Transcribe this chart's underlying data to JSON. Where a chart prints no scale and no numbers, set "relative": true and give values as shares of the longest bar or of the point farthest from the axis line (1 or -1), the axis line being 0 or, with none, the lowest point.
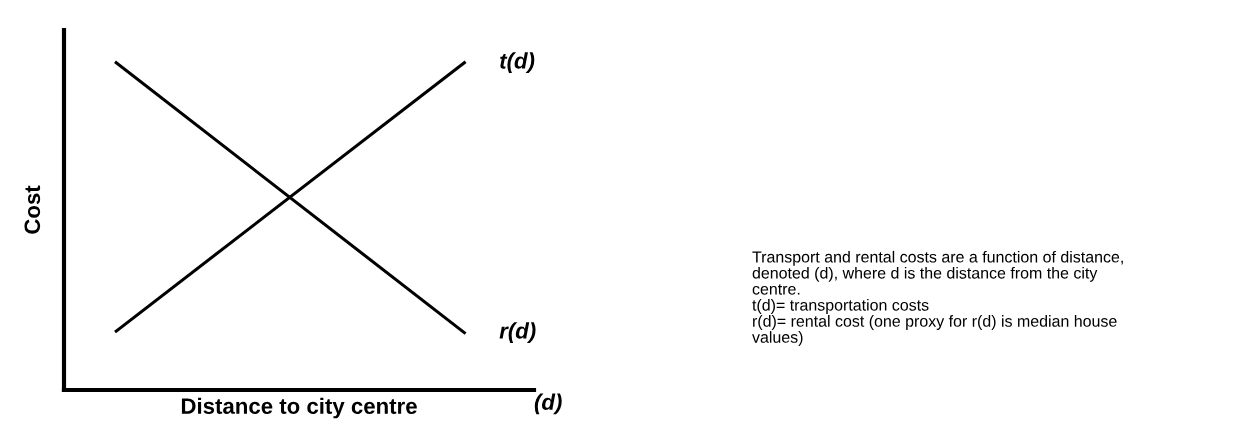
{
  "chart_data": {
    "type": "line",
    "relative": true,
    "xlabel": "Distance to city centre",
    "ylabel": "Cost",
    "categories": [
      null,
      null
    ],
    "series": [
      {
        "name": "t(d)",
        "color": "#000000",
        "values": [
          0.18,
          1
        ]
      },
      {
        "name": "r(d)",
        "color": "#000000",
        "values": [
          1,
          0.175
        ]
      }
    ],
    "annotations": [
      "(d)",
      "Transport and rental costs are a function of distance,\ndenoted (d), where d is the distance from the city\ncentre.\nt(d)= transportation costs\nr(d)= rental cost (one proxy for r(d) is median house\nvalues)"
    ],
    "line_style": "solid",
    "marker": "none",
    "legend": false,
    "grid": false
  }
}
